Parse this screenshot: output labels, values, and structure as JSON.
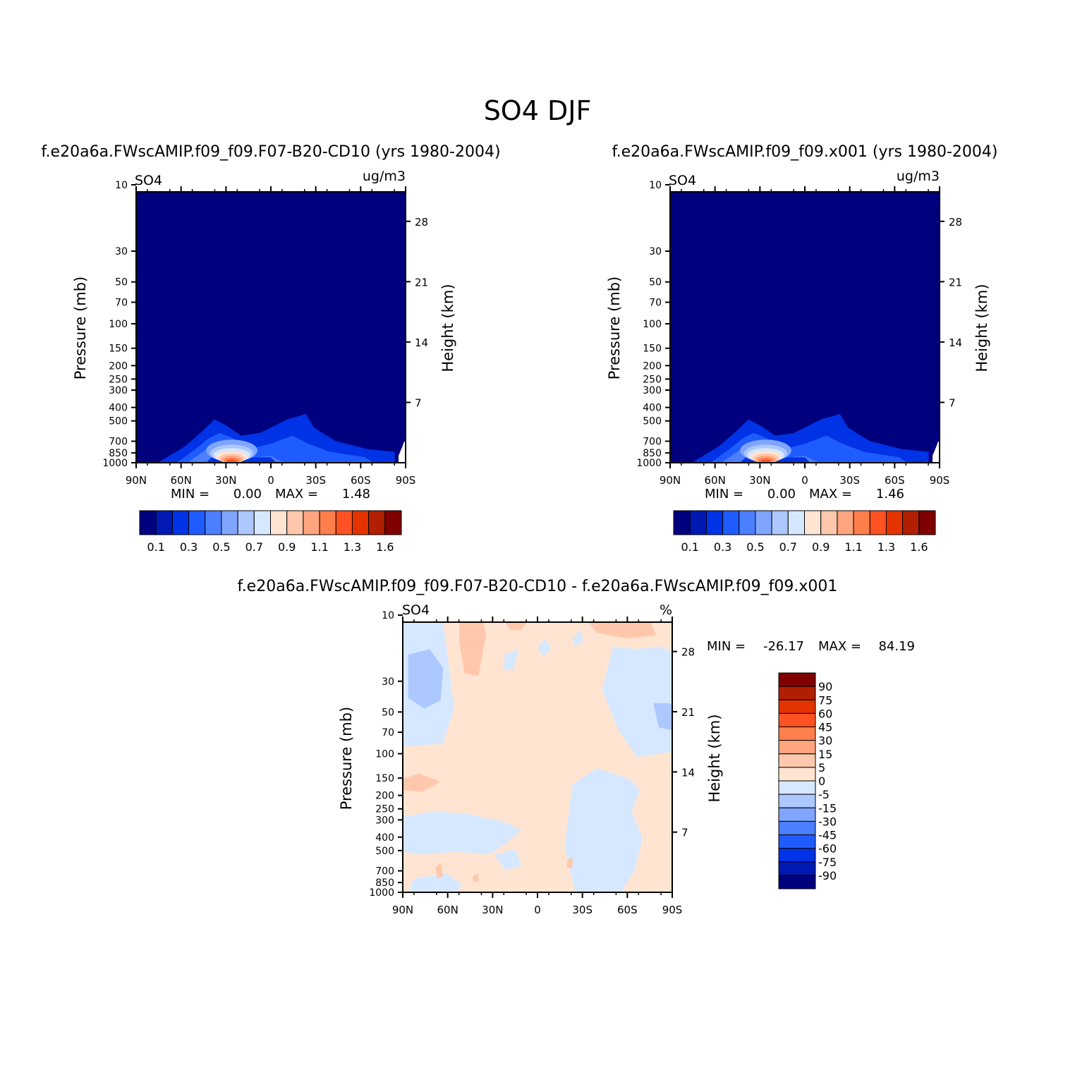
{
  "figure_title": "SO4 DJF",
  "chart_data": [
    {
      "type": "heatmap",
      "panel": "control",
      "title": "f.e20a6a.FWscAMIP.f09_f09.F07-B20-CD10 (yrs 1980-2004)",
      "variable": "SO4",
      "units": "ug/m3",
      "ylabel": "Pressure (mb)",
      "ylabel_right": "Height (km)",
      "x_ticks": [
        "90N",
        "60N",
        "30N",
        "0",
        "30S",
        "60S",
        "90S"
      ],
      "y_ticks": [
        "10",
        "30",
        "50",
        "70",
        "100",
        "150",
        "200",
        "250",
        "300",
        "400",
        "500",
        "700",
        "850",
        "1000"
      ],
      "height_ticks": [
        "28",
        "21",
        "14",
        "7"
      ],
      "min_label": "MIN =",
      "min_value": "0.00",
      "max_label": "MAX =",
      "max_value": "1.48",
      "colorbar_ticks": [
        "0.1",
        "0.3",
        "0.5",
        "0.7",
        "0.9",
        "1.1",
        "1.3",
        "1.6"
      ]
    },
    {
      "type": "heatmap",
      "panel": "test",
      "title": "f.e20a6a.FWscAMIP.f09_f09.x001 (yrs 1980-2004)",
      "variable": "SO4",
      "units": "ug/m3",
      "ylabel": "Pressure (mb)",
      "ylabel_right": "Height (km)",
      "x_ticks": [
        "90N",
        "60N",
        "30N",
        "0",
        "30S",
        "60S",
        "90S"
      ],
      "y_ticks": [
        "10",
        "30",
        "50",
        "70",
        "100",
        "150",
        "200",
        "250",
        "300",
        "400",
        "500",
        "700",
        "850",
        "1000"
      ],
      "height_ticks": [
        "28",
        "21",
        "14",
        "7"
      ],
      "min_label": "MIN =",
      "min_value": "0.00",
      "max_label": "MAX =",
      "max_value": "1.46",
      "colorbar_ticks": [
        "0.1",
        "0.3",
        "0.5",
        "0.7",
        "0.9",
        "1.1",
        "1.3",
        "1.6"
      ]
    },
    {
      "type": "heatmap",
      "panel": "difference",
      "title": "f.e20a6a.FWscAMIP.f09_f09.F07-B20-CD10 - f.e20a6a.FWscAMIP.f09_f09.x001",
      "variable": "SO4",
      "units": "%",
      "ylabel": "Pressure (mb)",
      "ylabel_right": "Height (km)",
      "x_ticks": [
        "90N",
        "60N",
        "30N",
        "0",
        "30S",
        "60S",
        "90S"
      ],
      "y_ticks": [
        "10",
        "30",
        "50",
        "70",
        "100",
        "150",
        "200",
        "250",
        "300",
        "400",
        "500",
        "700",
        "850",
        "1000"
      ],
      "height_ticks": [
        "28",
        "21",
        "14",
        "7"
      ],
      "min_label": "MIN =",
      "min_value": "-26.17",
      "max_label": "MAX =",
      "max_value": "84.19",
      "colorbar_ticks": [
        "90",
        "75",
        "60",
        "45",
        "30",
        "15",
        "5",
        "0",
        "-5",
        "-15",
        "-30",
        "-45",
        "-60",
        "-75",
        "-90"
      ]
    }
  ],
  "palette": [
    "#00007f",
    "#0019b2",
    "#0033e5",
    "#1f5cff",
    "#4c7fff",
    "#7fa5ff",
    "#adc8ff",
    "#d6e8ff",
    "#ffe5d1",
    "#ffc8ad",
    "#ffa57f",
    "#ff7f4c",
    "#ff5223",
    "#e53300",
    "#b21e00",
    "#7f0000"
  ]
}
